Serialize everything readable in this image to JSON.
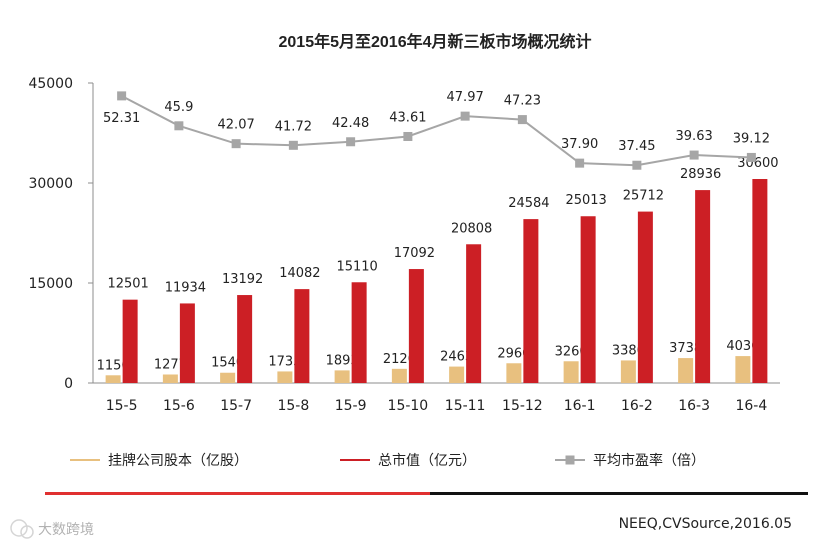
{
  "source_note": "NEEQ,CVSource,2016.05",
  "watermark": "大数跨境",
  "colors": {
    "shares": "#e8c07f",
    "market_cap": "#cc1f25",
    "pe": "#a6a6a6",
    "divider_red": "#e03030",
    "divider_black": "#111111"
  },
  "chart_data": {
    "type": "bar",
    "title": "2015年5月至2016年4月新三板市场概况统计",
    "categories": [
      "15-5",
      "15-6",
      "15-7",
      "15-8",
      "15-9",
      "15-10",
      "15-11",
      "15-12",
      "16-1",
      "16-2",
      "16-3",
      "16-4"
    ],
    "ylim": [
      0,
      45000
    ],
    "y_ticks": [
      "0",
      "15000",
      "30000",
      "45000"
    ],
    "grid": false,
    "legend_position": "bottom",
    "series": [
      {
        "name": "挂牌公司股本（亿股）",
        "type": "bar",
        "values": [
          1156,
          1277,
          1540,
          1735,
          1893,
          2126,
          2463,
          2960,
          3260,
          3386,
          3738,
          4036
        ],
        "labels": [
          "1156",
          "1277",
          "1540",
          "1735",
          "1893",
          "2126",
          "2463",
          "2960",
          "3260",
          "3386",
          "3738",
          "4036"
        ]
      },
      {
        "name": "总市值（亿元）",
        "type": "bar",
        "values": [
          12501,
          11934,
          13192,
          14082,
          15110,
          17092,
          20808,
          24584,
          25013,
          25712,
          28936,
          30600
        ],
        "labels": [
          "12501",
          "11934",
          "13192",
          "14082",
          "15110",
          "17092",
          "20808",
          "24584",
          "25013",
          "25712",
          "28936",
          "30600"
        ]
      },
      {
        "name": "平均市盈率（倍）",
        "type": "line",
        "values": [
          52.31,
          45.9,
          42.07,
          41.72,
          42.48,
          43.61,
          47.97,
          47.23,
          37.9,
          37.45,
          39.63,
          39.12
        ],
        "labels": [
          "52.31",
          "45.9",
          "42.07",
          "41.72",
          "42.48",
          "43.61",
          "47.97",
          "47.23",
          "37.90",
          "37.45",
          "39.63",
          "39.12"
        ]
      }
    ]
  }
}
